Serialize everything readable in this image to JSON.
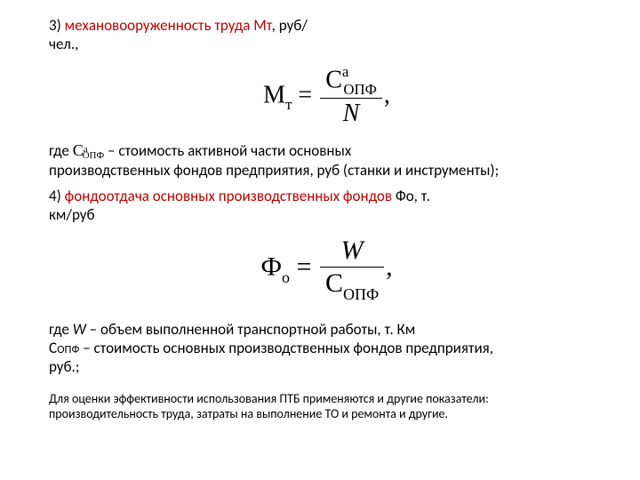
{
  "item3": {
    "num": "3)",
    "term": "механовооруженность труда Мт",
    "unit1": ", руб/",
    "unit2": "чел.,"
  },
  "formula1": {
    "lhs_base": "М",
    "lhs_sub": "т",
    "eq": " = ",
    "num_base": "С",
    "num_sub": "ОПФ",
    "num_sup": "а",
    "den": "N",
    "tail": ","
  },
  "where1": {
    "pre": "где ",
    "sym_base": "С",
    "sym_sub": "ОПФ",
    "sym_sup": "а",
    "post1": "   – стоимость активной части основных",
    "post2": "производственных фондов предприятия, руб (станки и инструменты);"
  },
  "item4": {
    "num": "4)",
    "term": "фондоотдача основных производственных фондов",
    "tail1": "Фо,  т.",
    "tail2": "км/руб"
  },
  "formula2": {
    "lhs_base": "Ф",
    "lhs_sub": "о",
    "eq": " = ",
    "num": "W",
    "den_base": "С",
    "den_sub": "ОПФ",
    "tail": ","
  },
  "where2": {
    "l1a": "где ",
    "l1w": "W",
    "l1b": " – объем выполненной транспортной работы, т. Км",
    "l2a": "С",
    "l2sub": "ОПФ",
    "l2b": " – стоимость основных производственных фондов предприятия,",
    "l3": "руб.;"
  },
  "footer": {
    "l1": "Для оценки эффективности использования ПТБ применяются и другие показатели:",
    "l2": "производительность труда, затраты на выполнение ТО и ремонта и другие."
  }
}
